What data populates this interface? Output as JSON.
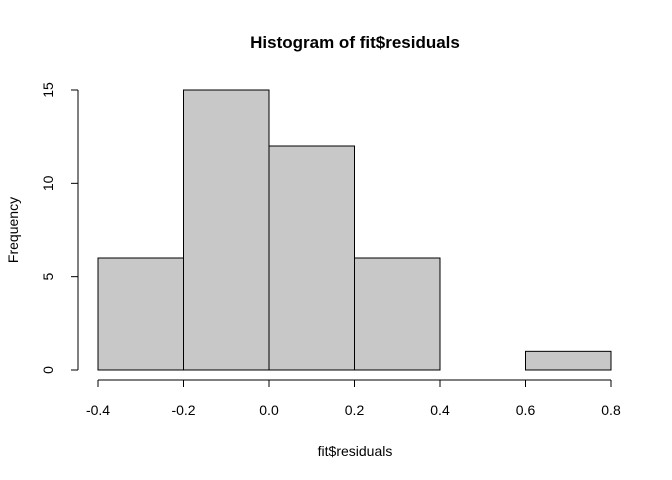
{
  "chart_data": {
    "type": "bar",
    "title": "Histogram of fit$residuals",
    "xlabel": "fit$residuals",
    "ylabel": "Frequency",
    "bins": [
      {
        "from": -0.4,
        "to": -0.2,
        "count": 6
      },
      {
        "from": -0.2,
        "to": 0.0,
        "count": 15
      },
      {
        "from": 0.0,
        "to": 0.2,
        "count": 12
      },
      {
        "from": 0.2,
        "to": 0.4,
        "count": 6
      },
      {
        "from": 0.4,
        "to": 0.6,
        "count": 0
      },
      {
        "from": 0.6,
        "to": 0.8,
        "count": 1
      }
    ],
    "xlim": [
      -0.4,
      0.8
    ],
    "ylim": [
      0,
      15
    ],
    "x_ticks": [
      "-0.4",
      "-0.2",
      "0.0",
      "0.2",
      "0.4",
      "0.6",
      "0.8"
    ],
    "y_ticks": [
      "0",
      "5",
      "10",
      "15"
    ],
    "grid": false,
    "bar_fill": "#c8c8c8",
    "bar_stroke": "#000000"
  }
}
